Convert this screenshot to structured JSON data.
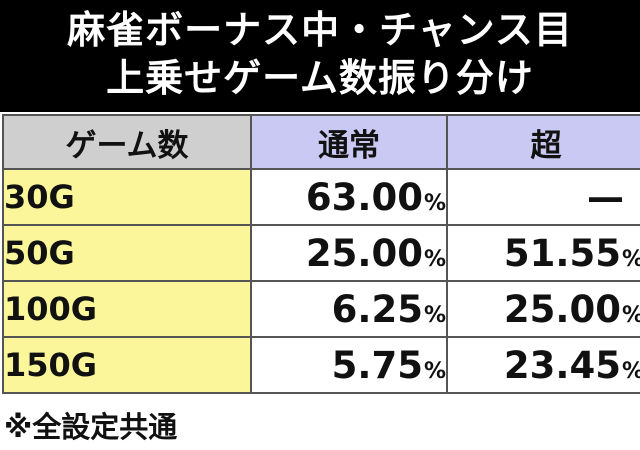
{
  "title": {
    "line1": "麻雀ボーナス中・チャンス目",
    "line2": "上乗せゲーム数振り分け"
  },
  "table": {
    "headers": {
      "games": "ゲーム数",
      "normal": "通常",
      "super": "超"
    },
    "rows": [
      {
        "games": "30G",
        "normal": "63.00",
        "normal_unit": "%",
        "super": "—",
        "super_unit": ""
      },
      {
        "games": "50G",
        "normal": "25.00",
        "normal_unit": "%",
        "super": "51.55",
        "super_unit": "%"
      },
      {
        "games": "100G",
        "normal": "6.25",
        "normal_unit": "%",
        "super": "25.00",
        "super_unit": "%"
      },
      {
        "games": "150G",
        "normal": "5.75",
        "normal_unit": "%",
        "super": "23.45",
        "super_unit": "%"
      }
    ]
  },
  "footnote": "※全設定共通",
  "colors": {
    "header_bg": "#000000",
    "header_text": "#ffffff",
    "games_header_bg": "#cfcfcf",
    "mode_header_bg": "#c9c9f3",
    "games_cell_bg": "#fbf69a",
    "value_cell_bg": "#ffffff"
  }
}
